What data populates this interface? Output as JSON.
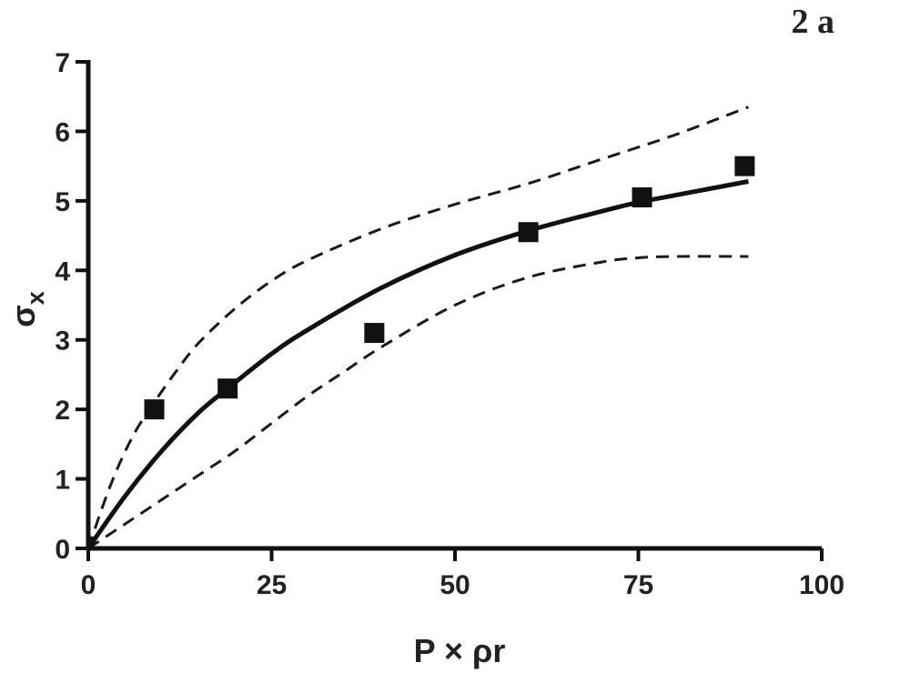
{
  "chart_data": {
    "type": "scatter",
    "panel_label": "2 a",
    "xlabel": "P × ρr",
    "ylabel_main": "σ",
    "ylabel_sub": "x",
    "xlim": [
      0,
      100
    ],
    "ylim": [
      0,
      7
    ],
    "xticks": [
      0,
      25,
      50,
      75,
      100
    ],
    "yticks": [
      0,
      1,
      2,
      3,
      4,
      5,
      6,
      7
    ],
    "grid": false,
    "points": [
      {
        "x": 9,
        "y": 2.0
      },
      {
        "x": 19,
        "y": 2.3
      },
      {
        "x": 39,
        "y": 3.1
      },
      {
        "x": 60,
        "y": 4.55
      },
      {
        "x": 75.5,
        "y": 5.05
      },
      {
        "x": 89.5,
        "y": 5.5
      }
    ],
    "fit_curve": {
      "x": [
        0,
        5,
        10,
        15,
        19,
        25,
        30,
        40,
        50,
        60,
        70,
        75,
        80,
        90
      ],
      "y": [
        0,
        0.75,
        1.4,
        1.95,
        2.3,
        2.8,
        3.15,
        3.75,
        4.22,
        4.57,
        4.85,
        4.98,
        5.08,
        5.28
      ]
    },
    "confidence_upper": {
      "x": [
        0,
        3,
        6,
        9,
        12,
        15,
        20,
        25,
        30,
        40,
        50,
        60,
        70,
        80,
        90
      ],
      "y": [
        0,
        0.9,
        1.6,
        2.1,
        2.55,
        2.95,
        3.45,
        3.85,
        4.15,
        4.6,
        4.95,
        5.25,
        5.6,
        5.95,
        6.35
      ]
    },
    "confidence_lower": {
      "x": [
        0,
        5,
        10,
        15,
        20,
        25,
        30,
        35,
        40,
        50,
        60,
        70,
        75,
        80,
        90
      ],
      "y": [
        0,
        0.35,
        0.7,
        1.05,
        1.4,
        1.8,
        2.2,
        2.55,
        2.9,
        3.5,
        3.9,
        4.12,
        4.18,
        4.2,
        4.2
      ]
    }
  }
}
